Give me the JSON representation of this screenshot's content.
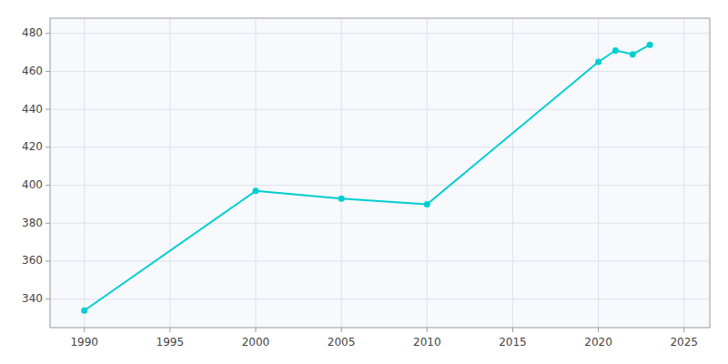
{
  "chart_data": {
    "type": "line",
    "x": [
      1990,
      2000,
      2005,
      2010,
      2020,
      2021,
      2022,
      2023
    ],
    "values": [
      334,
      397,
      393,
      390,
      465,
      471,
      469,
      474
    ],
    "color": "#00CED1",
    "marker": "circle",
    "xlim": [
      1988,
      2026.5
    ],
    "ylim": [
      325,
      488
    ],
    "xticks": [
      1990,
      1995,
      2000,
      2005,
      2010,
      2015,
      2020,
      2025
    ],
    "yticks": [
      340,
      360,
      380,
      400,
      420,
      440,
      460,
      480
    ],
    "grid": true
  }
}
